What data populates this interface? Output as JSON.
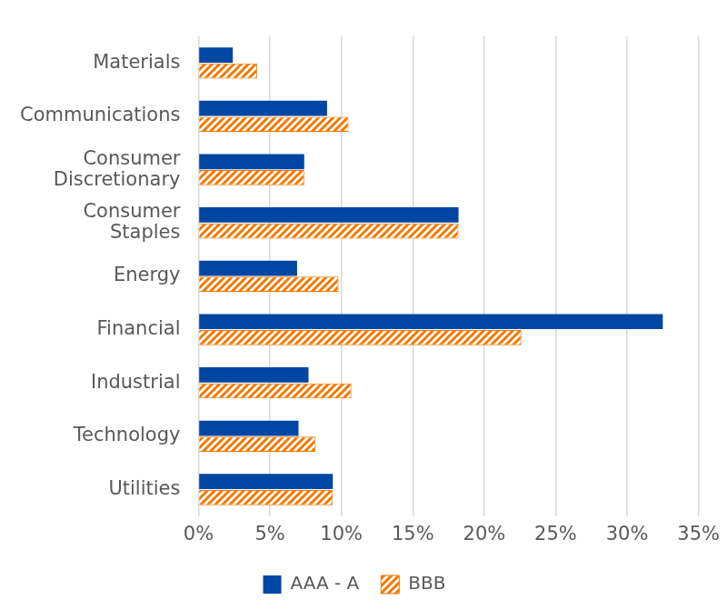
{
  "chart_data": {
    "type": "bar",
    "orientation": "horizontal",
    "categories": [
      "Materials",
      "Communications",
      "Consumer Discretionary",
      "Consumer Staples",
      "Energy",
      "Financial",
      "Industrial",
      "Technology",
      "Utilities"
    ],
    "series": [
      {
        "name": "AAA - A",
        "color": "#0047a3",
        "values": [
          2.4,
          9.0,
          7.4,
          18.2,
          6.9,
          32.5,
          7.7,
          7.0,
          9.4
        ]
      },
      {
        "name": "BBB",
        "color": "#f07800",
        "values": [
          4.1,
          10.5,
          7.4,
          18.2,
          9.8,
          22.6,
          10.7,
          8.2,
          9.4
        ]
      }
    ],
    "xlim": [
      0,
      35
    ],
    "xticks": [
      {
        "value": 0,
        "label": "0%"
      },
      {
        "value": 5,
        "label": "5%"
      },
      {
        "value": 10,
        "label": "10%"
      },
      {
        "value": 15,
        "label": "15%"
      },
      {
        "value": 20,
        "label": "20%"
      },
      {
        "value": 25,
        "label": "25%"
      },
      {
        "value": 30,
        "label": "30%"
      },
      {
        "value": 35,
        "label": "35%"
      }
    ],
    "grid": true,
    "legend": "bottom"
  }
}
